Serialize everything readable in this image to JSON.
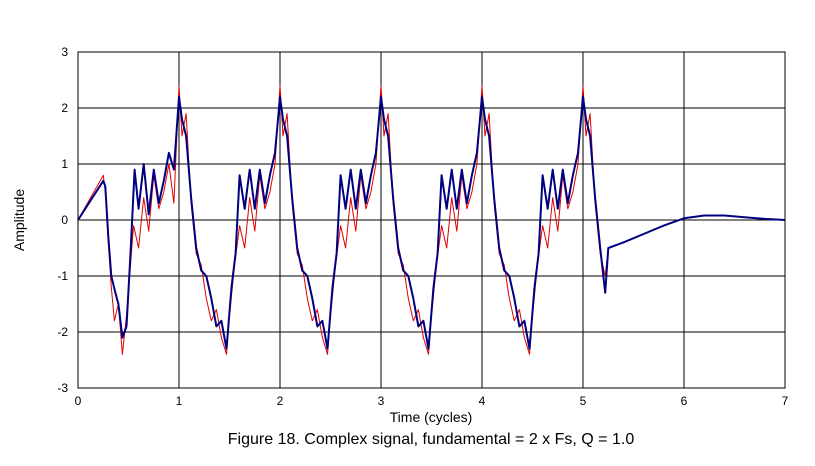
{
  "chart_data": {
    "type": "line",
    "title": "Figure 18. Complex signal, fundamental = 2 x Fs, Q = 1.0",
    "xlabel": "Time (cycles)",
    "ylabel": "Amplitude",
    "xlim": [
      0,
      7
    ],
    "ylim": [
      -3,
      3
    ],
    "x_ticks": [
      0,
      1,
      2,
      3,
      4,
      5,
      6,
      7
    ],
    "y_ticks": [
      -3,
      -2,
      -1,
      0,
      1,
      2,
      3
    ],
    "grid": true,
    "legend": "none",
    "series": [
      {
        "color": "#e00000",
        "x": [
          0,
          0.25,
          0.27,
          0.3,
          0.33,
          0.36,
          0.4,
          0.44,
          0.48,
          0.52,
          0.55,
          0.6,
          0.65,
          0.7,
          0.75,
          0.8,
          0.85,
          0.9,
          0.95,
          1.0,
          1.03,
          1.07,
          1.12,
          1.17,
          1.22,
          1.27,
          1.32,
          1.37,
          1.42,
          1.47,
          1.5,
          1.55,
          1.6,
          1.65,
          1.7,
          1.75,
          1.8,
          1.85,
          1.9,
          1.95,
          2.0,
          2.03,
          2.07,
          2.12,
          2.17,
          2.22,
          2.27,
          2.32,
          2.37,
          2.42,
          2.47,
          2.5,
          2.55,
          2.6,
          2.65,
          2.7,
          2.75,
          2.8,
          2.85,
          2.9,
          2.95,
          3.0,
          3.03,
          3.07,
          3.12,
          3.17,
          3.22,
          3.27,
          3.32,
          3.37,
          3.42,
          3.47,
          3.5,
          3.55,
          3.6,
          3.65,
          3.7,
          3.75,
          3.8,
          3.85,
          3.9,
          3.95,
          4.0,
          4.03,
          4.07,
          4.12,
          4.17,
          4.22,
          4.27,
          4.32,
          4.37,
          4.42,
          4.47,
          4.5,
          4.55,
          4.6,
          4.65,
          4.7,
          4.75,
          4.8,
          4.85,
          4.9,
          4.95,
          5.0,
          5.03,
          5.07,
          5.12,
          5.17,
          5.22,
          5.25
        ],
        "y": [
          0,
          0.8,
          0.5,
          -0.4,
          -1.2,
          -1.8,
          -1.5,
          -2.4,
          -1.7,
          -0.8,
          -0.1,
          -0.5,
          0.4,
          -0.2,
          0.8,
          0.2,
          0.5,
          1.0,
          0.3,
          2.4,
          1.5,
          1.9,
          0.3,
          -0.6,
          -0.8,
          -1.4,
          -1.8,
          -1.6,
          -2.1,
          -2.4,
          -1.7,
          -0.8,
          -0.1,
          -0.5,
          0.4,
          -0.2,
          0.8,
          0.2,
          0.5,
          1.0,
          2.4,
          1.5,
          1.9,
          0.3,
          -0.6,
          -0.8,
          -1.4,
          -1.8,
          -1.6,
          -2.1,
          -2.4,
          -1.7,
          -0.8,
          -0.1,
          -0.5,
          0.4,
          -0.2,
          0.8,
          0.2,
          0.5,
          1.0,
          2.4,
          1.5,
          1.9,
          0.3,
          -0.6,
          -0.8,
          -1.4,
          -1.8,
          -1.6,
          -2.1,
          -2.4,
          -1.7,
          -0.8,
          -0.1,
          -0.5,
          0.4,
          -0.2,
          0.8,
          0.2,
          0.5,
          1.0,
          2.4,
          1.5,
          1.9,
          0.3,
          -0.6,
          -0.8,
          -1.4,
          -1.8,
          -1.6,
          -2.1,
          -2.4,
          -1.7,
          -0.8,
          -0.1,
          -0.5,
          0.4,
          -0.2,
          0.8,
          0.2,
          0.5,
          1.0,
          2.4,
          1.5,
          1.9,
          0.3,
          -0.6,
          -1.0,
          -0.5
        ]
      },
      {
        "color": "#000080",
        "x": [
          0,
          0.25,
          0.27,
          0.3,
          0.33,
          0.37,
          0.4,
          0.44,
          0.48,
          0.52,
          0.56,
          0.6,
          0.65,
          0.7,
          0.75,
          0.8,
          0.85,
          0.9,
          0.95,
          1.0,
          1.03,
          1.07,
          1.12,
          1.17,
          1.22,
          1.27,
          1.32,
          1.37,
          1.42,
          1.47,
          1.52,
          1.56,
          1.6,
          1.65,
          1.7,
          1.75,
          1.8,
          1.85,
          1.9,
          1.95,
          2.0,
          2.03,
          2.07,
          2.12,
          2.17,
          2.22,
          2.27,
          2.32,
          2.37,
          2.42,
          2.47,
          2.52,
          2.56,
          2.6,
          2.65,
          2.7,
          2.75,
          2.8,
          2.85,
          2.9,
          2.95,
          3.0,
          3.03,
          3.07,
          3.12,
          3.17,
          3.22,
          3.27,
          3.32,
          3.37,
          3.42,
          3.47,
          3.52,
          3.56,
          3.6,
          3.65,
          3.7,
          3.75,
          3.8,
          3.85,
          3.9,
          3.95,
          4.0,
          4.03,
          4.07,
          4.12,
          4.17,
          4.22,
          4.27,
          4.32,
          4.37,
          4.42,
          4.47,
          4.52,
          4.56,
          4.6,
          4.65,
          4.7,
          4.75,
          4.8,
          4.85,
          4.9,
          4.95,
          5.0,
          5.03,
          5.07,
          5.12,
          5.17,
          5.22,
          5.25,
          5.4,
          5.6,
          5.8,
          6.0,
          6.2,
          6.4,
          6.6,
          6.8,
          7.0
        ],
        "y": [
          0,
          0.7,
          0.6,
          -0.3,
          -1.0,
          -1.3,
          -1.5,
          -2.1,
          -1.9,
          -0.6,
          0.9,
          0.2,
          1.0,
          0.1,
          0.9,
          0.3,
          0.7,
          1.2,
          0.9,
          2.2,
          1.8,
          1.5,
          0.4,
          -0.5,
          -0.9,
          -1.0,
          -1.4,
          -1.9,
          -1.8,
          -2.3,
          -1.2,
          -0.6,
          0.8,
          0.2,
          0.9,
          0.2,
          0.9,
          0.3,
          0.8,
          1.2,
          2.2,
          1.8,
          1.5,
          0.4,
          -0.5,
          -0.9,
          -1.0,
          -1.4,
          -1.9,
          -1.8,
          -2.3,
          -1.2,
          -0.6,
          0.8,
          0.2,
          0.9,
          0.2,
          0.9,
          0.3,
          0.8,
          1.2,
          2.2,
          1.8,
          1.5,
          0.4,
          -0.5,
          -0.9,
          -1.0,
          -1.4,
          -1.9,
          -1.8,
          -2.3,
          -1.2,
          -0.6,
          0.8,
          0.2,
          0.9,
          0.2,
          0.9,
          0.3,
          0.8,
          1.2,
          2.2,
          1.8,
          1.5,
          0.4,
          -0.5,
          -0.9,
          -1.0,
          -1.4,
          -1.9,
          -1.8,
          -2.3,
          -1.2,
          -0.6,
          0.8,
          0.2,
          0.9,
          0.2,
          0.9,
          0.3,
          0.8,
          1.2,
          2.2,
          1.8,
          1.5,
          0.4,
          -0.5,
          -1.3,
          -0.5,
          -0.4,
          -0.25,
          -0.1,
          0.03,
          0.08,
          0.08,
          0.05,
          0.02,
          0.0
        ]
      }
    ]
  }
}
